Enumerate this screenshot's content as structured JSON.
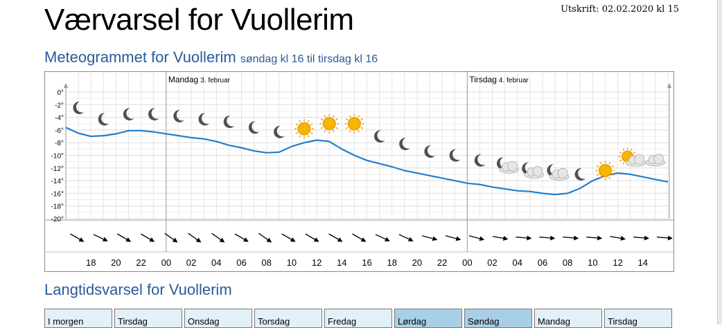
{
  "page": {
    "title": "Værvarsel for Vuollerim",
    "print_stamp": "Utskrift: 02.02.2020 kl 15"
  },
  "meteogram": {
    "heading": "Meteogrammet for Vuollerim",
    "subheading": "søndag kl 16 til tirsdag kl 16"
  },
  "longterm": {
    "heading": "Langtidsvarsel for Vuollerim",
    "tabs": [
      {
        "label": "I morgen",
        "weekend": false
      },
      {
        "label": "Tirsdag",
        "weekend": false
      },
      {
        "label": "Onsdag",
        "weekend": false
      },
      {
        "label": "Torsdag",
        "weekend": false
      },
      {
        "label": "Fredag",
        "weekend": false
      },
      {
        "label": "Lørdag",
        "weekend": true
      },
      {
        "label": "Søndag",
        "weekend": true
      },
      {
        "label": "Mandag",
        "weekend": false
      },
      {
        "label": "Tirsdag",
        "weekend": false
      }
    ]
  },
  "colors": {
    "temperature_line": "#1f7fd1",
    "heading": "#2a5a9a",
    "sun": "#f5a400",
    "moon": "#505050"
  },
  "chart_data": {
    "type": "line",
    "ylim": [
      -20,
      0
    ],
    "yticks": [
      "0°",
      "-2°",
      "-4°",
      "-6°",
      "-8°",
      "-10°",
      "-12°",
      "-14°",
      "-16°",
      "-18°",
      "-20°"
    ],
    "xticks": [
      "18",
      "20",
      "22",
      "00",
      "02",
      "04",
      "06",
      "08",
      "10",
      "12",
      "14",
      "16",
      "18",
      "20",
      "22",
      "00",
      "02",
      "04",
      "06",
      "08",
      "10",
      "12",
      "14"
    ],
    "day_labels": [
      {
        "day": "Mandag",
        "date": "3. februar",
        "hour": 24
      },
      {
        "day": "Tirsdag",
        "date": "4. februar",
        "hour": 48
      }
    ],
    "series": [
      {
        "hours": [
          16,
          17,
          18,
          19,
          20,
          21,
          22,
          23,
          24,
          25,
          26,
          27,
          28,
          29,
          30,
          31,
          32,
          33,
          34,
          35,
          36,
          37,
          38,
          39,
          40,
          41,
          42,
          43,
          44,
          45,
          46,
          47,
          48,
          49,
          50,
          51,
          52,
          53,
          54,
          55,
          56,
          57,
          58,
          59,
          60,
          61,
          62,
          63,
          64
        ],
        "values": [
          -5.6,
          -6.5,
          -7.0,
          -6.9,
          -6.6,
          -6.1,
          -6.1,
          -6.3,
          -6.6,
          -6.9,
          -7.2,
          -7.4,
          -7.8,
          -8.4,
          -8.8,
          -9.3,
          -9.6,
          -9.5,
          -8.6,
          -8.0,
          -7.6,
          -7.8,
          -9.0,
          -10.0,
          -10.8,
          -11.3,
          -11.8,
          -12.4,
          -12.8,
          -13.2,
          -13.6,
          -14.0,
          -14.4,
          -14.6,
          -15.0,
          -15.3,
          -15.6,
          -15.7,
          -16.0,
          -16.2,
          -16.0,
          -15.2,
          -14.0,
          -13.2,
          -12.8,
          -13.0,
          -13.4,
          -13.8,
          -14.2
        ]
      }
    ],
    "symbols": [
      {
        "hour": 17,
        "icon": "moon-icon",
        "temp": -2.5
      },
      {
        "hour": 19,
        "icon": "moon-icon",
        "temp": -4.3
      },
      {
        "hour": 21,
        "icon": "moon-icon",
        "temp": -3.5
      },
      {
        "hour": 23,
        "icon": "moon-icon",
        "temp": -3.5
      },
      {
        "hour": 25,
        "icon": "moon-icon",
        "temp": -3.8
      },
      {
        "hour": 27,
        "icon": "moon-icon",
        "temp": -4.3
      },
      {
        "hour": 29,
        "icon": "moon-icon",
        "temp": -4.7
      },
      {
        "hour": 31,
        "icon": "moon-icon",
        "temp": -5.6
      },
      {
        "hour": 33,
        "icon": "moon-icon",
        "temp": -6.3
      },
      {
        "hour": 35,
        "icon": "sun-icon",
        "temp": -5.8
      },
      {
        "hour": 37,
        "icon": "sun-icon",
        "temp": -5.0
      },
      {
        "hour": 39,
        "icon": "sun-icon",
        "temp": -5.0
      },
      {
        "hour": 41,
        "icon": "moon-icon",
        "temp": -7.0
      },
      {
        "hour": 43,
        "icon": "moon-icon",
        "temp": -8.2
      },
      {
        "hour": 45,
        "icon": "moon-icon",
        "temp": -9.4
      },
      {
        "hour": 47,
        "icon": "moon-icon",
        "temp": -10.0
      },
      {
        "hour": 49,
        "icon": "moon-icon",
        "temp": -10.8
      },
      {
        "hour": 51,
        "icon": "moon-cloud-icon",
        "temp": -11.5
      },
      {
        "hour": 53,
        "icon": "moon-cloud-icon",
        "temp": -12.3
      },
      {
        "hour": 55,
        "icon": "moon-cloud-icon",
        "temp": -12.6
      },
      {
        "hour": 57,
        "icon": "moon-icon",
        "temp": -13.0
      },
      {
        "hour": 59,
        "icon": "sun-icon",
        "temp": -12.4
      },
      {
        "hour": 61,
        "icon": "sun-cloud-icon",
        "temp": -10.4
      },
      {
        "hour": 63,
        "icon": "cloud-icon",
        "temp": -10.8
      }
    ],
    "wind_direction_deg": [
      120,
      115,
      120,
      120,
      125,
      125,
      125,
      120,
      125,
      120,
      120,
      120,
      120,
      115,
      115,
      105,
      105,
      105,
      100,
      95,
      95,
      95,
      95,
      100,
      95,
      95
    ],
    "grid": true
  }
}
